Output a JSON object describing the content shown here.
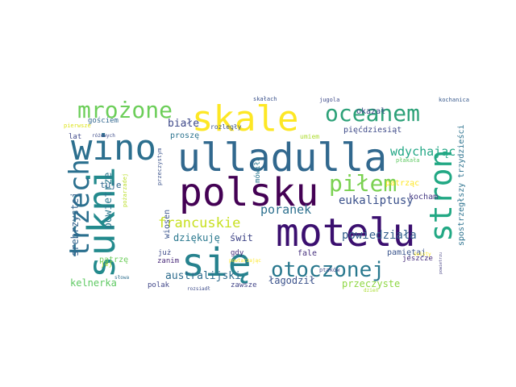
{
  "words": [
    {
      "text": "motelu",
      "color": "#3b0f6f"
    },
    {
      "text": "polsku",
      "color": "#440154"
    },
    {
      "text": "ulladulla",
      "color": "#31688e"
    },
    {
      "text": "się",
      "color": "#26828e"
    },
    {
      "text": "wino",
      "color": "#2c6f8e"
    },
    {
      "text": "skale",
      "color": "#fde725"
    },
    {
      "text": "sukni",
      "color": "#238a8d"
    },
    {
      "text": "trzech",
      "color": "#2a6f8e"
    },
    {
      "text": "stron",
      "color": "#22a884"
    },
    {
      "text": "oceanem",
      "color": "#2ca178"
    },
    {
      "text": "piłem",
      "color": "#7ad151"
    },
    {
      "text": "mrożone",
      "color": "#6cce59"
    },
    {
      "text": "otoczonej",
      "color": "#29788e"
    },
    {
      "text": "francuskie",
      "color": "#c8e020"
    },
    {
      "text": "australijski",
      "color": "#2e6d8e"
    },
    {
      "text": "wdychając",
      "color": "#22a785"
    },
    {
      "text": "eukaliptusy",
      "color": "#3b518b"
    },
    {
      "text": "poranek",
      "color": "#2d708e"
    },
    {
      "text": "powiedziała",
      "color": "#34608d"
    },
    {
      "text": "kelnerka",
      "color": "#5ec962"
    },
    {
      "text": "przeczyste",
      "color": "#8fd744"
    },
    {
      "text": "powietrze",
      "color": "#2a788e"
    },
    {
      "text": "srebrzystej",
      "color": "#33638d"
    },
    {
      "text": "łagodził",
      "color": "#3b528b"
    },
    {
      "text": "dziękuję",
      "color": "#2a788e"
    },
    {
      "text": "świt",
      "color": "#404688"
    },
    {
      "text": "białe",
      "color": "#3e4989"
    },
    {
      "text": "spostrzegłszy trzydzieści",
      "color": "#2c728e"
    },
    {
      "text": "pięćdziesiąt",
      "color": "#3e4a89"
    },
    {
      "text": "okazał",
      "color": "#3e4a89"
    },
    {
      "text": "tuje",
      "color": "#31678e"
    },
    {
      "text": "kocham",
      "color": "#443983"
    },
    {
      "text": "patrząc",
      "color": "#fde725"
    },
    {
      "text": "pamiętaj",
      "color": "#3a548c"
    },
    {
      "text": "proszę",
      "color": "#2c738e"
    },
    {
      "text": "wiosen",
      "color": "#3a548c"
    },
    {
      "text": "patrzę",
      "color": "#6ccd5a"
    },
    {
      "text": "gościem",
      "color": "#31678e"
    },
    {
      "text": "polak",
      "color": "#404688"
    },
    {
      "text": "zawsze",
      "color": "#414487"
    },
    {
      "text": "fale",
      "color": "#46307e"
    },
    {
      "text": "gdy",
      "color": "#472f7d"
    },
    {
      "text": "lat",
      "color": "#3f4889"
    },
    {
      "text": "już",
      "color": "#3e4a89"
    },
    {
      "text": "zanim",
      "color": "#482979"
    },
    {
      "text": "jeszcze",
      "color": "#472d7b"
    },
    {
      "text": "mówiła",
      "color": "#2a768e"
    },
    {
      "text": "rozległy",
      "color": "#3b528b"
    },
    {
      "text": "umiem",
      "color": "#addc30"
    },
    {
      "text": "ptaków",
      "color": "#3e4c8a"
    },
    {
      "text": "jej",
      "color": "#b5de2b"
    },
    {
      "text": "płakała",
      "color": "#5ec962"
    },
    {
      "text": "pierwsze",
      "color": "#dde318"
    },
    {
      "text": "różowych",
      "color": "#3e4c8a"
    },
    {
      "text": "skałach",
      "color": "#3b528b"
    },
    {
      "text": "jugola",
      "color": "#3e4a89"
    },
    {
      "text": "kochanica",
      "color": "#38598c"
    },
    {
      "text": "przeczystym",
      "color": "#3b528b"
    },
    {
      "text": "pożarzadej",
      "color": "#bade28"
    },
    {
      "text": "słowa",
      "color": "#2e6e8e"
    },
    {
      "text": "powtarzając",
      "color": "#fde725"
    },
    {
      "text": "rozsiadł",
      "color": "#3e4c8a"
    },
    {
      "text": "świsty",
      "color": "#fde725"
    },
    {
      "text": "powietrzu",
      "color": "#4e4a89"
    },
    {
      "text": "dzień",
      "color": "#aadc32"
    }
  ]
}
